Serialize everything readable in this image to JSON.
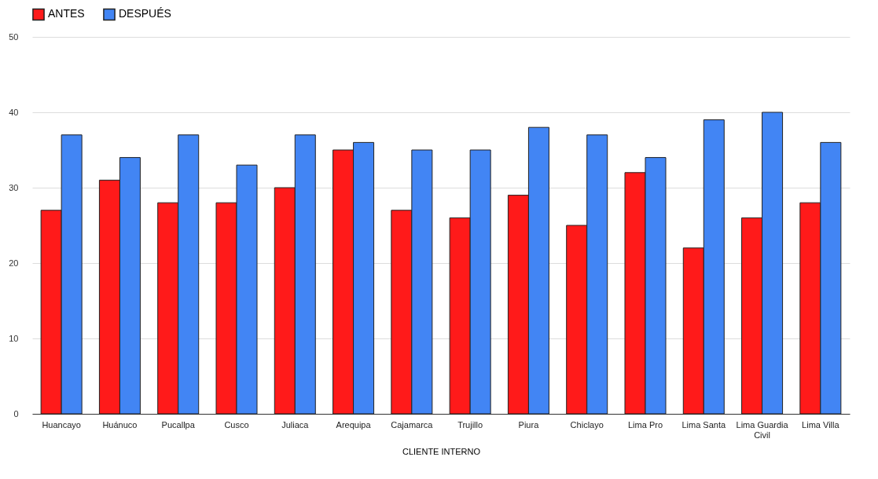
{
  "chart_data": {
    "type": "bar",
    "xlabel": "CLIENTE INTERNO",
    "categories": [
      "Huancayo",
      "Huánuco",
      "Pucallpa",
      "Cusco",
      "Juliaca",
      "Arequipa",
      "Cajamarca",
      "Trujillo",
      "Piura",
      "Chiclayo",
      "Lima Pro",
      "Lima Santa",
      "Lima Guardia Civil",
      "Lima Villa"
    ],
    "series": [
      {
        "name": "ANTES",
        "color": "#ff1a1a",
        "values": [
          27,
          31,
          28,
          28,
          30,
          35,
          27,
          26,
          29,
          25,
          32,
          22,
          26,
          28
        ]
      },
      {
        "name": "DESPUÉS",
        "color": "#4285f4",
        "values": [
          37,
          34,
          37,
          33,
          37,
          36,
          35,
          35,
          38,
          37,
          34,
          39,
          40,
          36
        ]
      }
    ],
    "ylim": [
      0,
      50
    ],
    "yticks": [
      0,
      10,
      20,
      30,
      40,
      50
    ],
    "grid": "y",
    "legend": "top"
  }
}
